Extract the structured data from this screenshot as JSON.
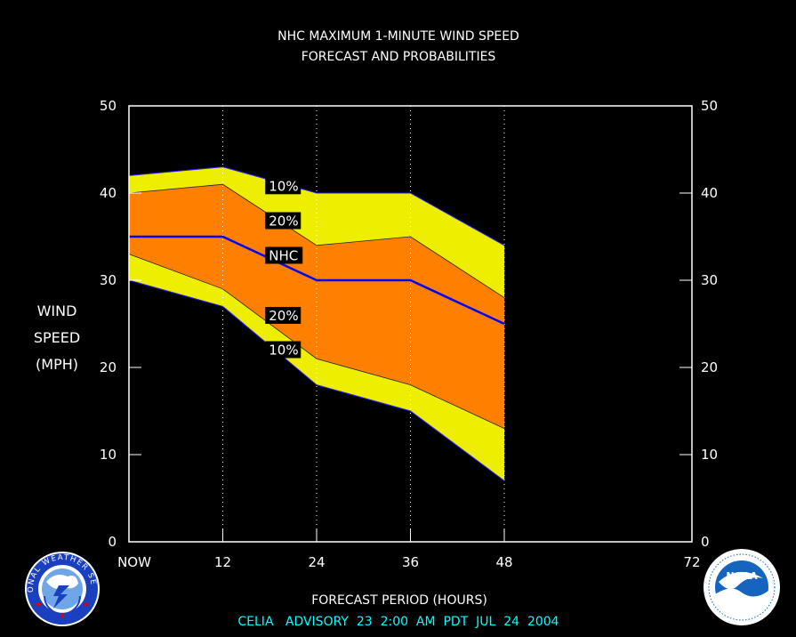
{
  "chart_data": {
    "type": "area",
    "title": "NHC MAXIMUM 1-MINUTE WIND SPEED",
    "subtitle": "FORECAST AND PROBABILITIES",
    "xlabel": "FORECAST PERIOD (HOURS)",
    "ylabel": [
      "WIND",
      "SPEED",
      "(MPH)"
    ],
    "xlim": [
      0,
      72
    ],
    "ylim": [
      0,
      50
    ],
    "x_ticks": [
      0,
      12,
      24,
      36,
      48,
      72
    ],
    "x_tick_labels": [
      "NOW",
      "12",
      "24",
      "36",
      "48",
      "72"
    ],
    "y_ticks": [
      0,
      10,
      20,
      30,
      40,
      50
    ],
    "y_tick_labels": [
      "0",
      "10",
      "20",
      "30",
      "40",
      "50"
    ],
    "grid": "dotted vertical at 12, 24, 36, 48",
    "x": [
      0,
      12,
      24,
      36,
      48
    ],
    "series": [
      {
        "name": "10%",
        "color": "#eeee00",
        "upper": [
          42,
          43,
          40,
          40,
          34
        ],
        "lower": [
          30,
          27,
          18,
          15,
          7
        ]
      },
      {
        "name": "20%",
        "color": "#ff8000",
        "upper": [
          40,
          41,
          34,
          35,
          28
        ],
        "lower": [
          33,
          29,
          21,
          18,
          13
        ]
      },
      {
        "name": "NHC",
        "color": "#0000ff",
        "values": [
          35,
          35,
          30,
          30,
          25
        ]
      }
    ],
    "band_labels": {
      "upper_10": "10%",
      "upper_20": "20%",
      "nhc": "NHC",
      "lower_20": "20%",
      "lower_10": "10%"
    },
    "footer": "CELIA   ADVISORY  23  2:00  AM  PDT  JUL  24  2004"
  },
  "logos": {
    "left": "NATIONAL WEATHER SERVICE",
    "right": "NOAA"
  },
  "colors": {
    "background": "#000000",
    "axis": "#ffffff",
    "footer_text": "#00ffff"
  }
}
